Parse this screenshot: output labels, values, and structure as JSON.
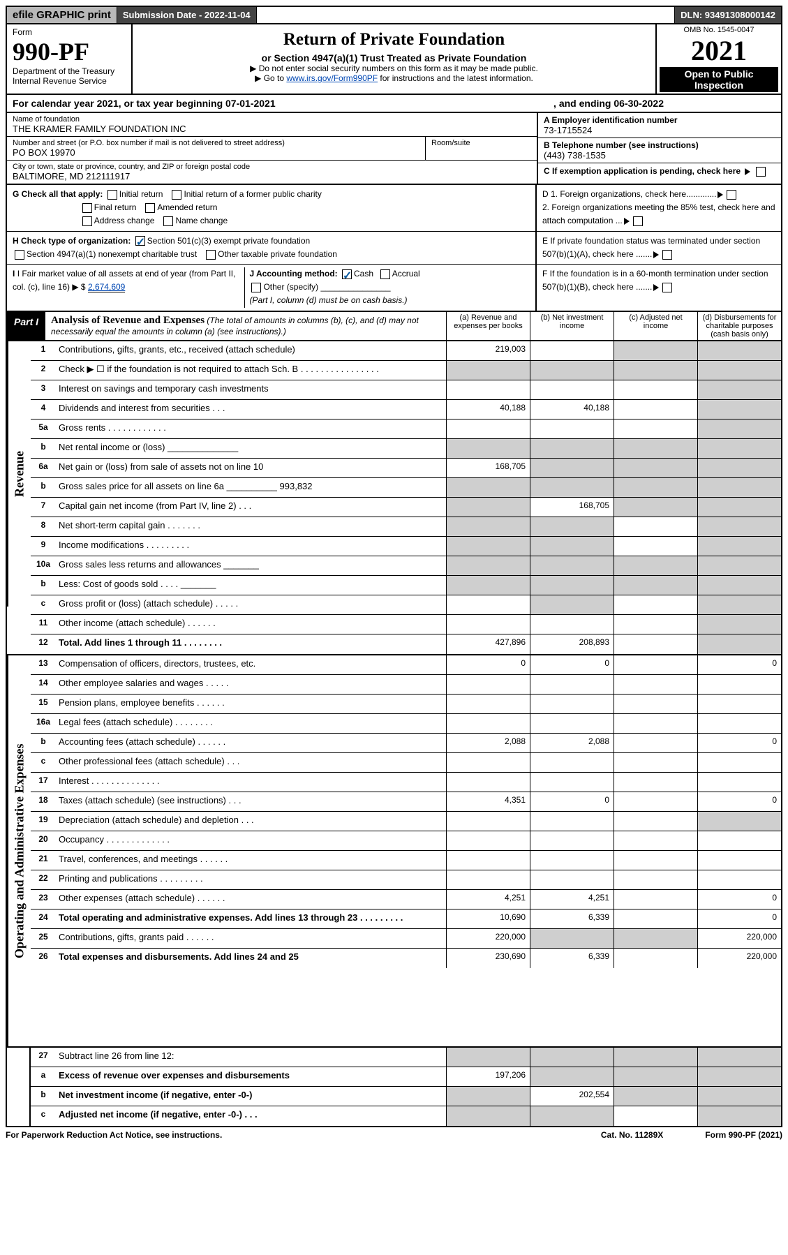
{
  "top": {
    "efile": "efile GRAPHIC print",
    "submission": "Submission Date - 2022-11-04",
    "dln": "DLN: 93491308000142"
  },
  "header": {
    "form_word": "Form",
    "form_num": "990-PF",
    "dept": "Department of the Treasury",
    "irs": "Internal Revenue Service",
    "title": "Return of Private Foundation",
    "subtitle": "or Section 4947(a)(1) Trust Treated as Private Foundation",
    "note1": "▶ Do not enter social security numbers on this form as it may be made public.",
    "note2_pre": "▶ Go to ",
    "note2_link": "www.irs.gov/Form990PF",
    "note2_post": " for instructions and the latest information.",
    "omb": "OMB No. 1545-0047",
    "year": "2021",
    "open": "Open to Public Inspection"
  },
  "cal": {
    "text1": "For calendar year 2021, or tax year beginning 07-01-2021",
    "text2": ", and ending 06-30-2022"
  },
  "info": {
    "name_lbl": "Name of foundation",
    "name": "THE KRAMER FAMILY FOUNDATION INC",
    "addr_lbl": "Number and street (or P.O. box number if mail is not delivered to street address)",
    "addr": "PO BOX 19970",
    "room_lbl": "Room/suite",
    "city_lbl": "City or town, state or province, country, and ZIP or foreign postal code",
    "city": "BALTIMORE, MD  212111917",
    "a_lbl": "A Employer identification number",
    "a_val": "73-1715524",
    "b_lbl": "B Telephone number (see instructions)",
    "b_val": "(443) 738-1535",
    "c_lbl": "C If exemption application is pending, check here"
  },
  "checks": {
    "g": "G Check all that apply:",
    "g1": "Initial return",
    "g2": "Initial return of a former public charity",
    "g3": "Final return",
    "g4": "Amended return",
    "g5": "Address change",
    "g6": "Name change",
    "h": "H Check type of organization:",
    "h1": "Section 501(c)(3) exempt private foundation",
    "h2": "Section 4947(a)(1) nonexempt charitable trust",
    "h3": "Other taxable private foundation",
    "i": "I Fair market value of all assets at end of year (from Part II, col. (c), line 16) ▶ $",
    "i_val": "2,674,609",
    "j": "J Accounting method:",
    "j1": "Cash",
    "j2": "Accrual",
    "j3": "Other (specify)",
    "j_note": "(Part I, column (d) must be on cash basis.)",
    "d1": "D 1. Foreign organizations, check here.............",
    "d2": "2. Foreign organizations meeting the 85% test, check here and attach computation ...",
    "e": "E If private foundation status was terminated under section 507(b)(1)(A), check here .......",
    "f": "F If the foundation is in a 60-month termination under section 507(b)(1)(B), check here .......",
    "d_lbl_bold": "D 1.",
    "e_lbl_bold": "E",
    "f_lbl_bold": "F"
  },
  "part1": {
    "label": "Part I",
    "title": "Analysis of Revenue and Expenses",
    "title_note": " (The total of amounts in columns (b), (c), and (d) may not necessarily equal the amounts in column (a) (see instructions).)",
    "col_a": "(a) Revenue and expenses per books",
    "col_b": "(b) Net investment income",
    "col_c": "(c) Adjusted net income",
    "col_d": "(d) Disbursements for charitable purposes (cash basis only)"
  },
  "side": {
    "revenue": "Revenue",
    "expenses": "Operating and Administrative Expenses"
  },
  "rows": [
    {
      "n": "1",
      "d": "Contributions, gifts, grants, etc., received (attach schedule)",
      "a": "219,003",
      "b": "",
      "c": "g",
      "dd": "g"
    },
    {
      "n": "2",
      "d": "Check ▶ ☐ if the foundation is not required to attach Sch. B  . . . . . . . . . . . . . . . .",
      "a": "g",
      "b": "g",
      "c": "g",
      "dd": "g"
    },
    {
      "n": "3",
      "d": "Interest on savings and temporary cash investments",
      "a": "",
      "b": "",
      "c": "",
      "dd": "g"
    },
    {
      "n": "4",
      "d": "Dividends and interest from securities  .  .  .",
      "a": "40,188",
      "b": "40,188",
      "c": "",
      "dd": "g"
    },
    {
      "n": "5a",
      "d": "Gross rents  .  .  .  .  .  .  .  .  .  .  .  .",
      "a": "",
      "b": "",
      "c": "",
      "dd": "g"
    },
    {
      "n": "b",
      "d": "Net rental income or (loss) ______________",
      "a": "g",
      "b": "g",
      "c": "g",
      "dd": "g"
    },
    {
      "n": "6a",
      "d": "Net gain or (loss) from sale of assets not on line 10",
      "a": "168,705",
      "b": "g",
      "c": "g",
      "dd": "g"
    },
    {
      "n": "b",
      "d": "Gross sales price for all assets on line 6a __________ 993,832",
      "a": "g",
      "b": "g",
      "c": "g",
      "dd": "g"
    },
    {
      "n": "7",
      "d": "Capital gain net income (from Part IV, line 2)  .  .  .",
      "a": "g",
      "b": "168,705",
      "c": "g",
      "dd": "g"
    },
    {
      "n": "8",
      "d": "Net short-term capital gain  .  .  .  .  .  .  .",
      "a": "g",
      "b": "g",
      "c": "",
      "dd": "g"
    },
    {
      "n": "9",
      "d": "Income modifications  .  .  .  .  .  .  .  .  .",
      "a": "g",
      "b": "g",
      "c": "",
      "dd": "g"
    },
    {
      "n": "10a",
      "d": "Gross sales less returns and allowances  _______",
      "a": "g",
      "b": "g",
      "c": "g",
      "dd": "g"
    },
    {
      "n": "b",
      "d": "Less: Cost of goods sold  .  .  .  .  _______",
      "a": "g",
      "b": "g",
      "c": "g",
      "dd": "g"
    },
    {
      "n": "c",
      "d": "Gross profit or (loss) (attach schedule)  .  .  .  .  .",
      "a": "",
      "b": "g",
      "c": "",
      "dd": "g"
    },
    {
      "n": "11",
      "d": "Other income (attach schedule)  .  .  .  .  .  .",
      "a": "",
      "b": "",
      "c": "",
      "dd": "g"
    },
    {
      "n": "12",
      "d": "Total. Add lines 1 through 11  .  .  .  .  .  .  .  .",
      "a": "427,896",
      "b": "208,893",
      "c": "",
      "dd": "g",
      "bold": true
    }
  ],
  "exp_rows": [
    {
      "n": "13",
      "d": "Compensation of officers, directors, trustees, etc.",
      "a": "0",
      "b": "0",
      "c": "",
      "dd": "0"
    },
    {
      "n": "14",
      "d": "Other employee salaries and wages  .  .  .  .  .",
      "a": "",
      "b": "",
      "c": "",
      "dd": ""
    },
    {
      "n": "15",
      "d": "Pension plans, employee benefits  .  .  .  .  .  .",
      "a": "",
      "b": "",
      "c": "",
      "dd": ""
    },
    {
      "n": "16a",
      "d": "Legal fees (attach schedule)  .  .  .  .  .  .  .  .",
      "a": "",
      "b": "",
      "c": "",
      "dd": ""
    },
    {
      "n": "b",
      "d": "Accounting fees (attach schedule)  .  .  .  .  .  .",
      "a": "2,088",
      "b": "2,088",
      "c": "",
      "dd": "0"
    },
    {
      "n": "c",
      "d": "Other professional fees (attach schedule)  .  .  .",
      "a": "",
      "b": "",
      "c": "",
      "dd": ""
    },
    {
      "n": "17",
      "d": "Interest  .  .  .  .  .  .  .  .  .  .  .  .  .  .",
      "a": "",
      "b": "",
      "c": "",
      "dd": ""
    },
    {
      "n": "18",
      "d": "Taxes (attach schedule) (see instructions)  .  .  .",
      "a": "4,351",
      "b": "0",
      "c": "",
      "dd": "0"
    },
    {
      "n": "19",
      "d": "Depreciation (attach schedule) and depletion  .  .  .",
      "a": "",
      "b": "",
      "c": "",
      "dd": "g"
    },
    {
      "n": "20",
      "d": "Occupancy  .  .  .  .  .  .  .  .  .  .  .  .  .",
      "a": "",
      "b": "",
      "c": "",
      "dd": ""
    },
    {
      "n": "21",
      "d": "Travel, conferences, and meetings  .  .  .  .  .  .",
      "a": "",
      "b": "",
      "c": "",
      "dd": ""
    },
    {
      "n": "22",
      "d": "Printing and publications  .  .  .  .  .  .  .  .  .",
      "a": "",
      "b": "",
      "c": "",
      "dd": ""
    },
    {
      "n": "23",
      "d": "Other expenses (attach schedule)  .  .  .  .  .  .",
      "a": "4,251",
      "b": "4,251",
      "c": "",
      "dd": "0"
    },
    {
      "n": "24",
      "d": "Total operating and administrative expenses. Add lines 13 through 23  .  .  .  .  .  .  .  .  .",
      "a": "10,690",
      "b": "6,339",
      "c": "",
      "dd": "0",
      "bold": true
    },
    {
      "n": "25",
      "d": "Contributions, gifts, grants paid  .  .  .  .  .  .",
      "a": "220,000",
      "b": "g",
      "c": "g",
      "dd": "220,000"
    },
    {
      "n": "26",
      "d": "Total expenses and disbursements. Add lines 24 and 25",
      "a": "230,690",
      "b": "6,339",
      "c": "",
      "dd": "220,000",
      "bold": true
    }
  ],
  "bottom_rows": [
    {
      "n": "27",
      "d": "Subtract line 26 from line 12:",
      "a": "g",
      "b": "g",
      "c": "g",
      "dd": "g"
    },
    {
      "n": "a",
      "d": "Excess of revenue over expenses and disbursements",
      "a": "197,206",
      "b": "g",
      "c": "g",
      "dd": "g",
      "bold": true
    },
    {
      "n": "b",
      "d": "Net investment income (if negative, enter -0-)",
      "a": "g",
      "b": "202,554",
      "c": "g",
      "dd": "g",
      "bold": true
    },
    {
      "n": "c",
      "d": "Adjusted net income (if negative, enter -0-)  .  .  .",
      "a": "g",
      "b": "g",
      "c": "",
      "dd": "g",
      "bold": true
    }
  ],
  "footer": {
    "left": "For Paperwork Reduction Act Notice, see instructions.",
    "mid": "Cat. No. 11289X",
    "right": "Form 990-PF (2021)"
  }
}
